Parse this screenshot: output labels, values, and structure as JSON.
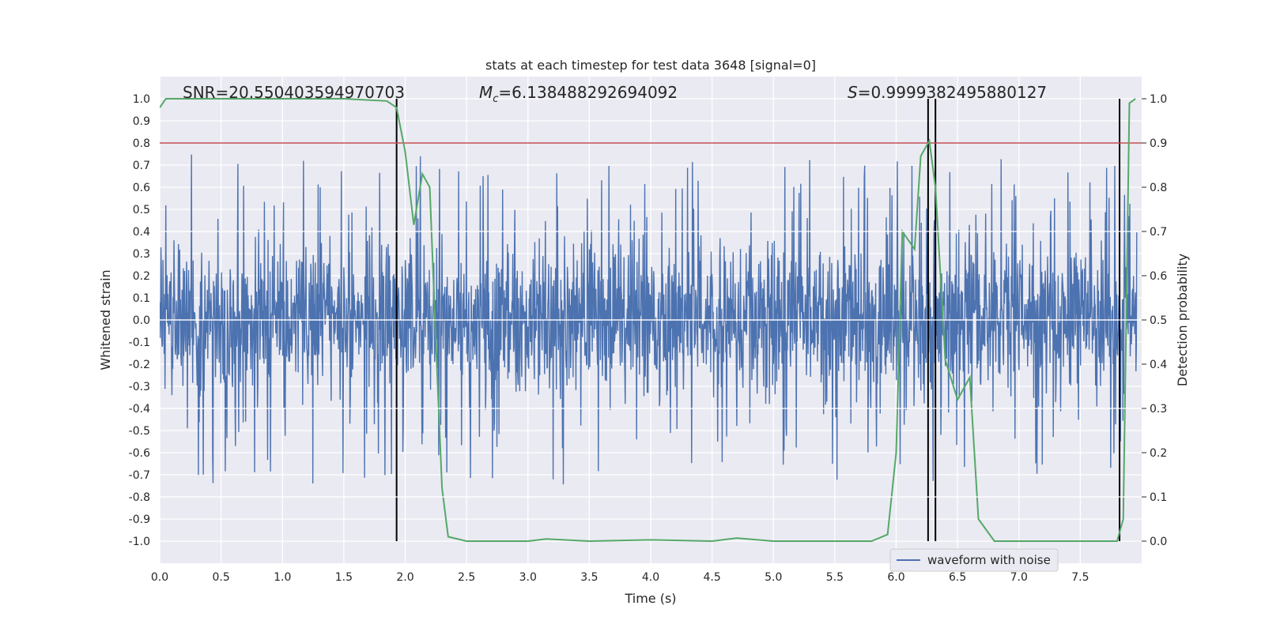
{
  "chart_data": {
    "type": "line",
    "title": "stats at each timestep for test data 3648 [signal=0]",
    "xlabel": "Time (s)",
    "ylabel_left": "Whitened strain",
    "ylabel_right": "Detection probability",
    "xlim": [
      0.0,
      8.0
    ],
    "ylim_left": [
      -1.1,
      1.1
    ],
    "ylim_right": [
      -0.05,
      1.05
    ],
    "x_ticks": [
      "0.0",
      "0.5",
      "1.0",
      "1.5",
      "2.0",
      "2.5",
      "3.0",
      "3.5",
      "4.0",
      "4.5",
      "5.0",
      "5.5",
      "6.0",
      "6.5",
      "7.0",
      "7.5"
    ],
    "y_ticks_left": [
      "1.0",
      "0.9",
      "0.8",
      "0.7",
      "0.6",
      "0.5",
      "0.4",
      "0.3",
      "0.2",
      "0.1",
      "0.0",
      "-0.1",
      "-0.2",
      "-0.3",
      "-0.4",
      "-0.5",
      "-0.6",
      "-0.7",
      "-0.8",
      "-0.9",
      "-1.0"
    ],
    "y_ticks_right": [
      "1.0",
      "0.9",
      "0.8",
      "0.7",
      "0.6",
      "0.5",
      "0.4",
      "0.3",
      "0.2",
      "0.1",
      "0.0"
    ],
    "annotations": {
      "snr": "SNR=20.550403594970703",
      "mc_symbol": "M",
      "mc_sub": "c",
      "mc_value": "=6.138488292694092",
      "s_symbol": "S",
      "s_value": "=0.9999382495880127"
    },
    "legend": {
      "label": "waveform with noise",
      "loc": "lower-right"
    },
    "threshold_line": {
      "y": 0.9,
      "axis": "right",
      "color": "#c44e52"
    },
    "vertical_lines": [
      1.93,
      6.26,
      6.32,
      7.82
    ],
    "waveform": {
      "name": "waveform with noise",
      "color": "#4c72b0",
      "duration": 8.0,
      "samples": 2400,
      "envelope": 0.42
    },
    "probability": {
      "name": "detection probability",
      "color": "#55a868",
      "x": [
        0.0,
        0.05,
        0.3,
        1.0,
        1.5,
        1.85,
        1.93,
        2.0,
        2.07,
        2.14,
        2.2,
        2.25,
        2.3,
        2.35,
        2.5,
        3.0,
        3.15,
        3.5,
        4.0,
        4.5,
        4.7,
        5.0,
        5.5,
        5.8,
        5.93,
        6.0,
        6.05,
        6.1,
        6.15,
        6.2,
        6.27,
        6.32,
        6.4,
        6.5,
        6.6,
        6.67,
        6.8,
        7.0,
        7.5,
        7.8,
        7.85,
        7.9,
        7.95
      ],
      "y": [
        0.98,
        1.0,
        1.0,
        1.0,
        1.0,
        0.995,
        0.98,
        0.88,
        0.715,
        0.83,
        0.8,
        0.45,
        0.12,
        0.01,
        0.0,
        0.0,
        0.005,
        0.0,
        0.003,
        0.0,
        0.007,
        0.0,
        0.0,
        0.0,
        0.015,
        0.2,
        0.7,
        0.68,
        0.66,
        0.87,
        0.905,
        0.8,
        0.41,
        0.32,
        0.37,
        0.05,
        0.0,
        0.0,
        0.0,
        0.0,
        0.05,
        0.99,
        1.0
      ]
    }
  }
}
